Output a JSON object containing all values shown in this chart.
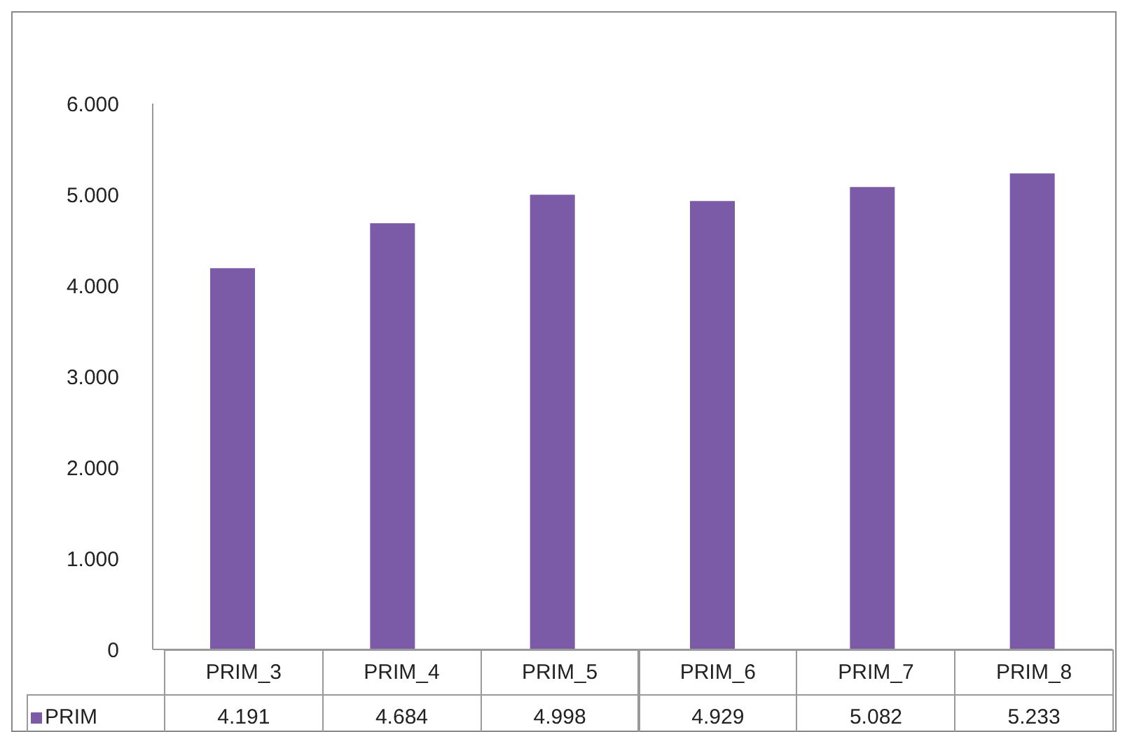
{
  "chart_data": {
    "type": "bar",
    "categories": [
      "PRIM_3",
      "PRIM_4",
      "PRIM_5",
      "PRIM_6",
      "PRIM_7",
      "PRIM_8"
    ],
    "series": [
      {
        "name": "PRIM",
        "color": "#7b5ba8",
        "values": [
          4191,
          4684,
          4998,
          4929,
          5082,
          5233
        ],
        "value_labels": [
          "4.191",
          "4.684",
          "4.998",
          "4.929",
          "5.082",
          "5.233"
        ]
      }
    ],
    "ylim": [
      0,
      6000
    ],
    "yticks": [
      0,
      {
        "value": 1000,
        "label": "1.000"
      },
      {
        "value": 2000,
        "label": "2.000"
      },
      {
        "value": 3000,
        "label": "3.000"
      },
      {
        "value": 4000,
        "label": "4.000"
      },
      {
        "value": 5000,
        "label": "5.000"
      },
      {
        "value": 6000,
        "label": "6.000"
      }
    ]
  }
}
